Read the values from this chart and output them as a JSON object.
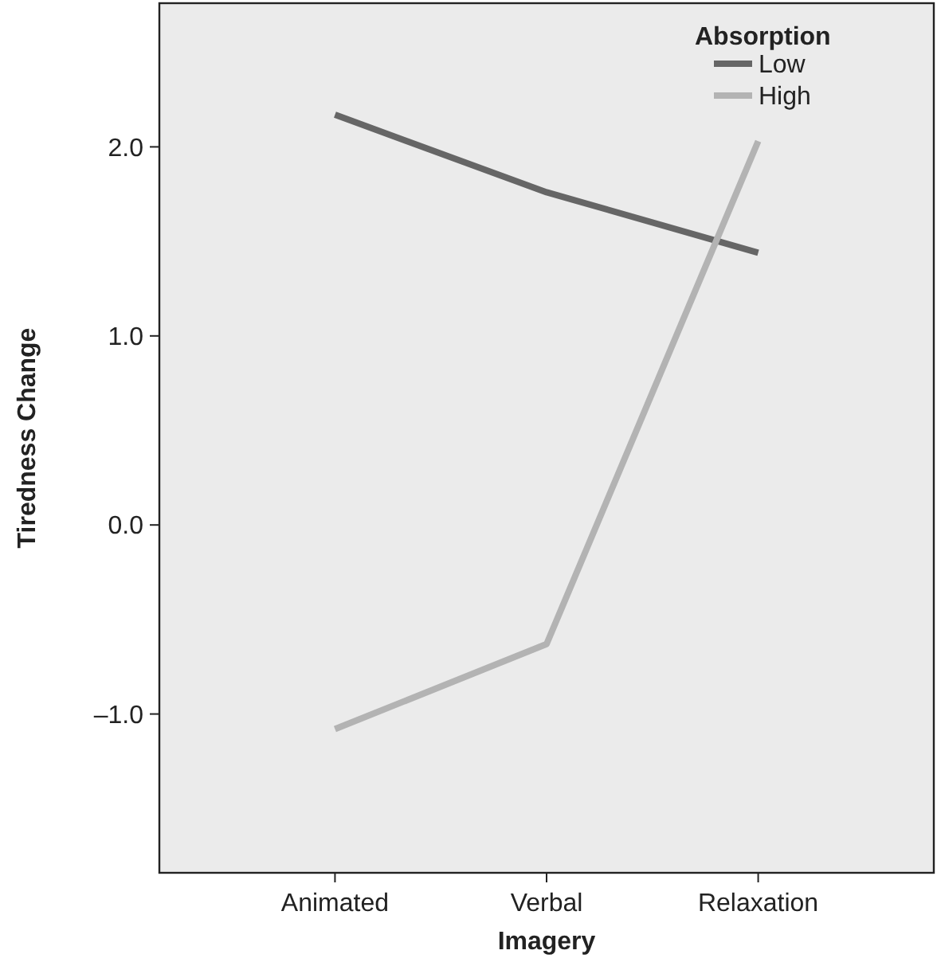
{
  "chart_data": {
    "type": "line",
    "xlabel": "Imagery",
    "ylabel": "Tiredness Change",
    "legend_title": "Absorption",
    "legend": "top right",
    "grid": false,
    "marker": "none",
    "categories": [
      "Animated",
      "Verbal",
      "Relaxation"
    ],
    "series": [
      {
        "name": "Low",
        "color": "#666666",
        "values": [
          2.17,
          1.76,
          1.44
        ]
      },
      {
        "name": "High",
        "color": "#b3b3b3",
        "values": [
          -1.08,
          -0.63,
          2.03
        ]
      }
    ],
    "ylim": [
      -1.84,
      2.76
    ],
    "yticks": [
      {
        "value": -1,
        "label": "–1.0"
      },
      {
        "value": 0,
        "label": "0.0"
      },
      {
        "value": 1,
        "label": "1.0"
      },
      {
        "value": 2,
        "label": "2.0"
      }
    ]
  }
}
